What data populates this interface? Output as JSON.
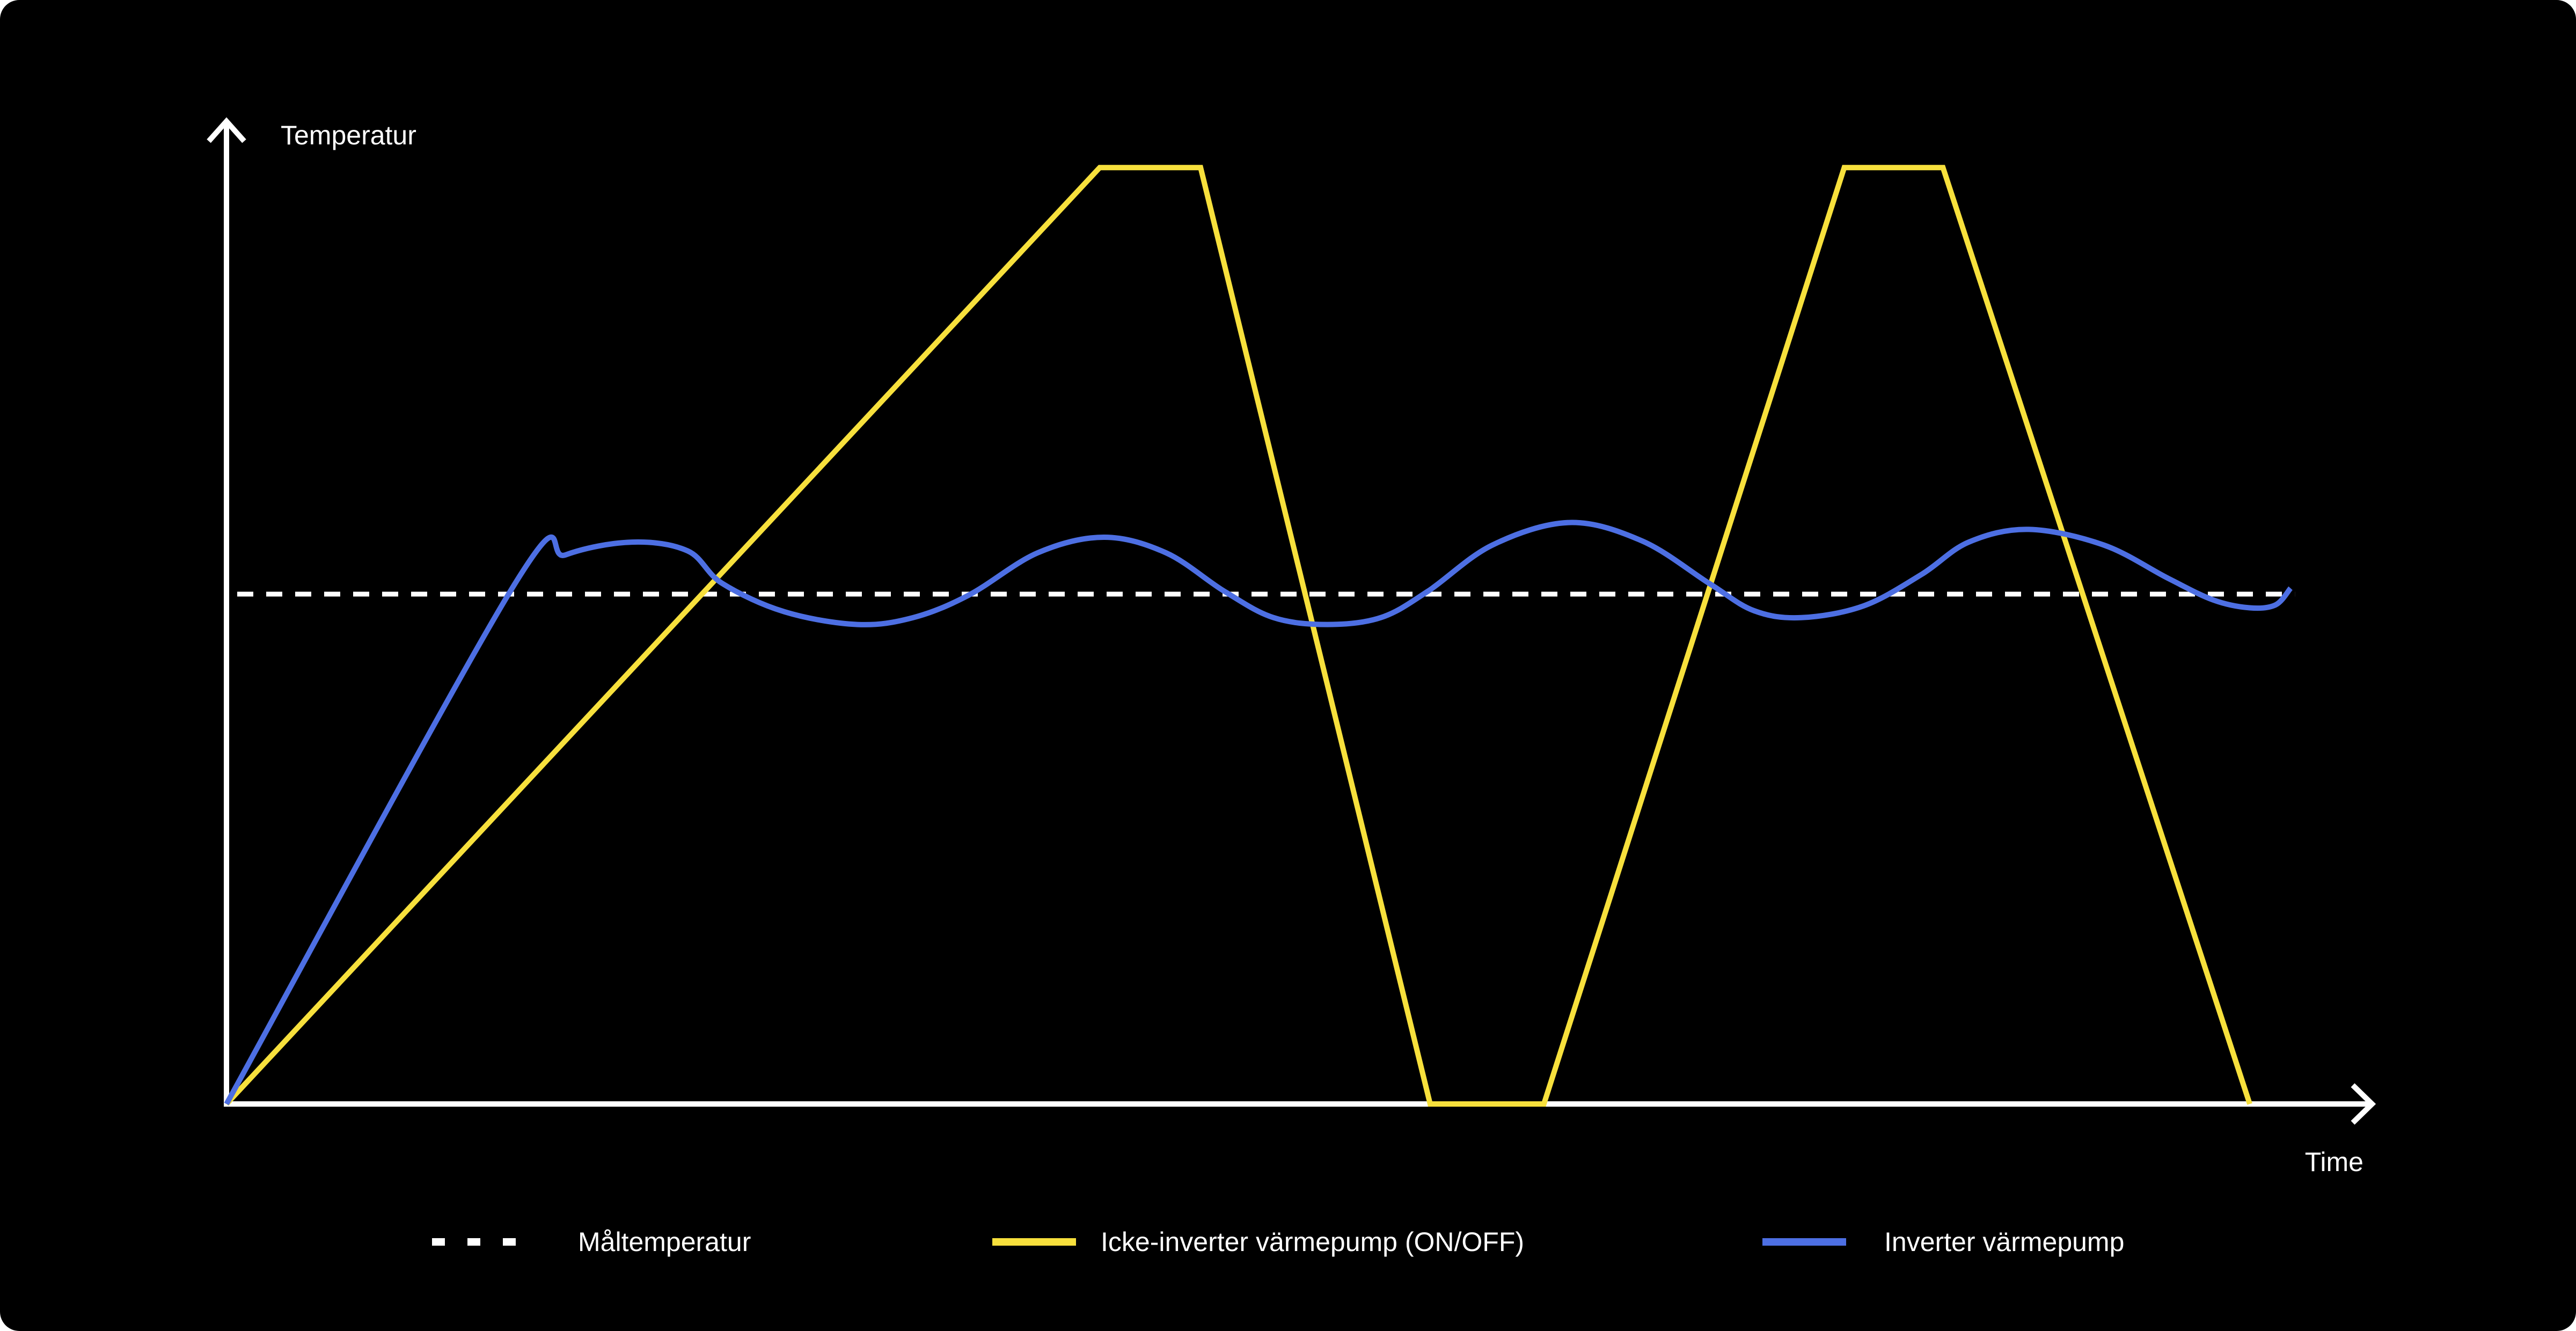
{
  "chart_data": {
    "type": "line",
    "y_label": "Temperatur",
    "x_label": "Time",
    "xlim": [
      0,
      100
    ],
    "ylim": [
      0,
      100
    ],
    "series": [
      {
        "name": "Måltemperatur",
        "color": "#ffffff",
        "style": "dashed",
        "x": [
          0.5,
          96.4
        ],
        "values": [
          52,
          52
        ]
      },
      {
        "name": "Icke-inverter värmepump (ON/OFF)",
        "color": "#f7e03c",
        "style": "straight",
        "x": [
          0,
          40.7,
          45.4,
          56.1,
          61.4,
          75.4,
          80.0,
          94.3
        ],
        "values": [
          0,
          95.5,
          95.5,
          0,
          0,
          95.5,
          95.5,
          0
        ]
      },
      {
        "name": "Inverter värmepump",
        "color": "#4d6fe3",
        "style": "smooth",
        "x": [
          0,
          13.4,
          15.8,
          18.9,
          21.5,
          23.1,
          26.0,
          29.4,
          32.0,
          34.6,
          37.8,
          40.9,
          43.8,
          46.5,
          48.8,
          51.3,
          53.8,
          56.0,
          59.0,
          62.6,
          66.0,
          69.1,
          71.2,
          73.4,
          76.3,
          79.0,
          81.2,
          84.0,
          87.5,
          90.5,
          92.6,
          94.3,
          95.5,
          96.2
        ],
        "values": [
          0,
          52.9,
          56.0,
          57.3,
          56.4,
          53.1,
          50.2,
          48.9,
          49.6,
          51.9,
          56.2,
          57.8,
          56.2,
          52.3,
          49.6,
          48.9,
          49.6,
          52.3,
          57.0,
          59.3,
          57.4,
          53.1,
          50.3,
          49.6,
          50.8,
          54.0,
          57.3,
          58.6,
          57.0,
          53.6,
          51.4,
          50.6,
          50.9,
          52.6
        ]
      }
    ]
  }
}
